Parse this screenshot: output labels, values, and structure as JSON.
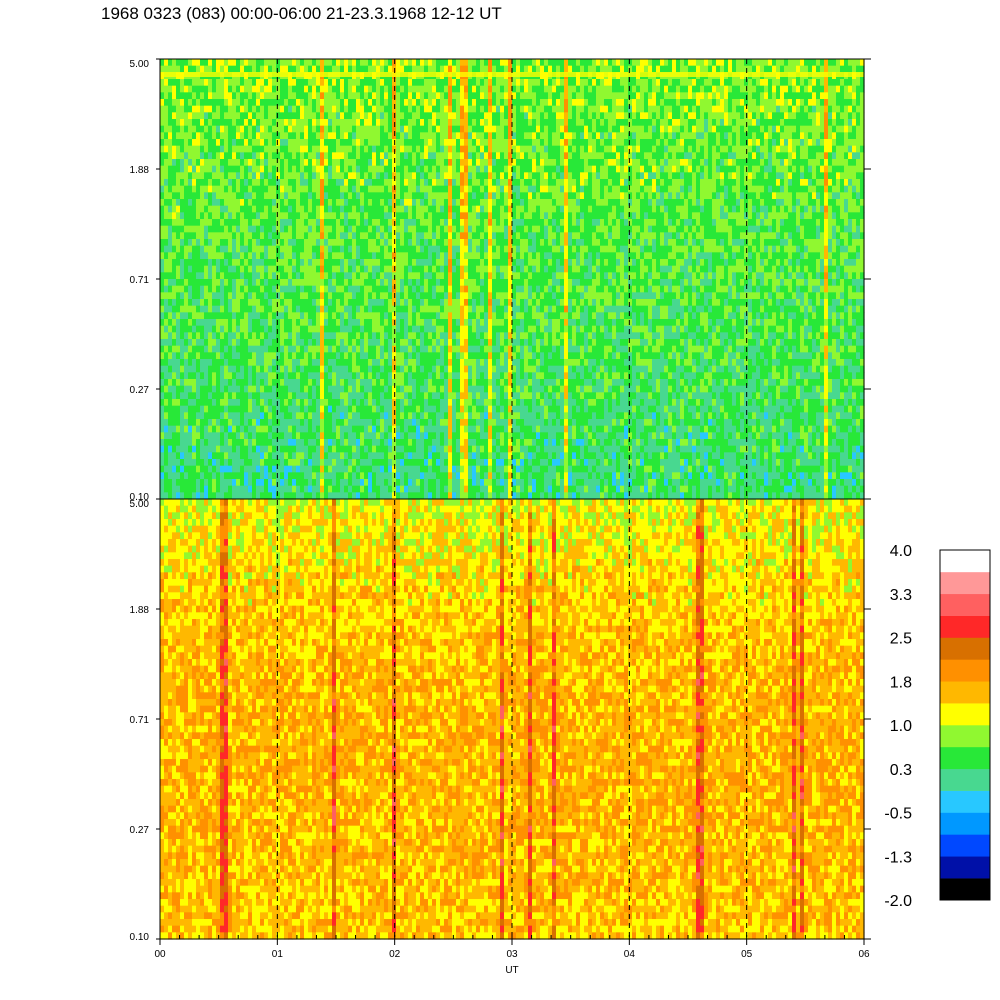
{
  "title": "1968 0323 (083) 00:00-06:00 21-23.3.1968  12-12 UT",
  "chart_data": {
    "type": "heatmap",
    "title": "1968 0323 (083) 00:00-06:00 21-23.3.1968  12-12 UT",
    "xlabel": "UT",
    "x_ticks": [
      "00",
      "01",
      "02",
      "03",
      "04",
      "05",
      "06"
    ],
    "x_range": [
      0,
      6
    ],
    "y_scale": "log",
    "y_range": [
      0.1,
      5.0
    ],
    "panels": [
      {
        "y_ticks": [
          "5.00",
          "1.88",
          "0.71",
          "0.27",
          "0.10"
        ],
        "dominant_level": 0.5
      },
      {
        "y_ticks": [
          "5.00",
          "1.88",
          "0.71",
          "0.27",
          "0.10"
        ],
        "dominant_level": 1.5
      }
    ],
    "colorbar": {
      "labels": [
        "4.0",
        "3.3",
        "2.5",
        "1.8",
        "1.0",
        "0.3",
        "-0.5",
        "-1.3",
        "-2.0"
      ],
      "range": [
        -2.0,
        4.0
      ],
      "colors": [
        "#000000",
        "#0010a8",
        "#0048ff",
        "#0098ff",
        "#28c8ff",
        "#48d890",
        "#28e838",
        "#90f830",
        "#ffff00",
        "#ffb800",
        "#ff9000",
        "#d87000",
        "#ff2828",
        "#ff6060",
        "#ff9898",
        "#ffffff"
      ]
    },
    "time_markers": [
      "01",
      "02",
      "03",
      "04",
      "05"
    ],
    "grid": false
  }
}
